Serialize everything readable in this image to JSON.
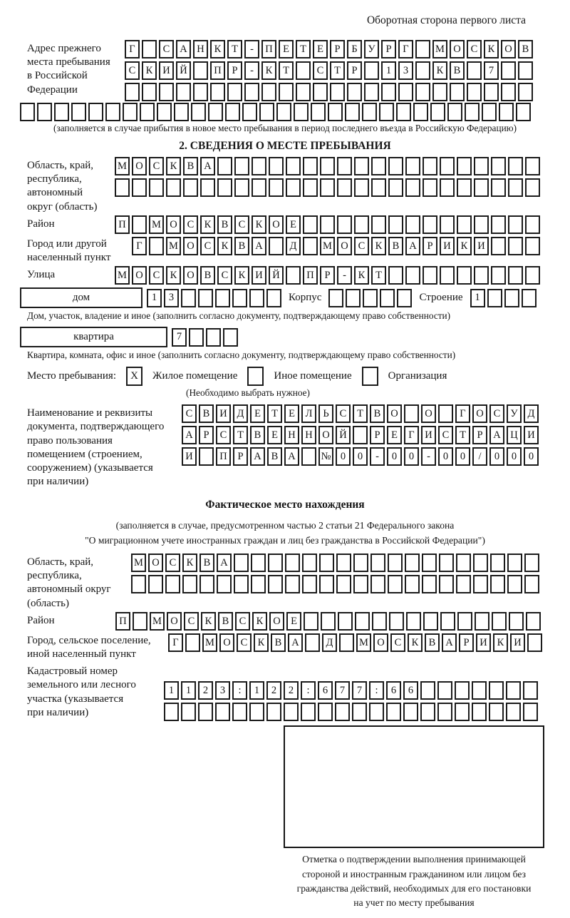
{
  "page_title": "Оборотная сторона первого листа",
  "colors": {
    "ink": "#1b1b1b",
    "background": "#ffffff"
  },
  "prev_address": {
    "label_lines": [
      "Адрес прежнего",
      "места пребывания",
      "в Российской",
      "Федерации"
    ],
    "rows": [
      {
        "chars": "Г САНКТ-ПЕТЕРБУРГ МОСКОВ",
        "len": 24
      },
      {
        "chars": "СКИЙ ПР-КТ СТР 13 КВ 7",
        "len": 24
      },
      {
        "chars": "",
        "len": 24
      }
    ],
    "full_row": {
      "chars": "",
      "len": 30
    },
    "note": "(заполняется в случае прибытия в новое место пребывания в период последнего въезда в Российскую Федерацию)"
  },
  "section2": {
    "title": "2. СВЕДЕНИЯ О МЕСТЕ ПРЕБЫВАНИЯ",
    "region": {
      "label_lines": [
        "Область, край,",
        "республика,",
        "автономный",
        "округ (область)"
      ],
      "rows": [
        {
          "chars": "МОСКВА",
          "len": 25
        },
        {
          "chars": "",
          "len": 25
        }
      ]
    },
    "district": {
      "label": "Район",
      "row": {
        "chars": "П МОСКВСКОЕ",
        "len": 25
      }
    },
    "city": {
      "label_lines": [
        "Город или другой",
        "населенный пункт"
      ],
      "row": {
        "chars": "Г МОСКВА Д МОСКВАРИКИ",
        "len": 24
      }
    },
    "street": {
      "label": "Улица",
      "row": {
        "chars": "МОСКОВСКИЙ ПР-КТ",
        "len": 25
      }
    },
    "house_line": {
      "house_box_label": "дом",
      "house_row": {
        "chars": "13",
        "len": 8
      },
      "korpus_label": "Корпус",
      "korpus_row": {
        "chars": "",
        "len": 5
      },
      "stroenie_label": "Строение",
      "stroenie_row": {
        "chars": "1",
        "len": 4
      }
    },
    "house_note": "Дом, участок, владение и иное (заполнить согласно документу, подтверждающему право собственности)",
    "apartment_line": {
      "box_label": "квартира",
      "row": {
        "chars": "7",
        "len": 4
      }
    },
    "apartment_note": "Квартира, комната, офис и иное (заполнить согласно документу, подтверждающему право собственности)",
    "stay_type": {
      "label": "Место пребывания:",
      "options": [
        {
          "label": "Жилое помещение",
          "mark": "X",
          "checked": true
        },
        {
          "label": "Иное помещение",
          "mark": "",
          "checked": false
        },
        {
          "label": "Организация",
          "mark": "",
          "checked": false
        }
      ],
      "note": "(Необходимо выбрать нужное)"
    },
    "document": {
      "label_lines": [
        "Наименование и реквизиты",
        "документа, подтверждающего",
        "право пользования",
        "помещением (строением,",
        "сооружением) (указывается",
        "при наличии)"
      ],
      "rows": [
        {
          "chars": "СВИДЕТЕЛЬСТВО О ГОСУД",
          "len": 21
        },
        {
          "chars": "АРСТВЕННОЙ РЕГИСТРАЦИ",
          "len": 21
        },
        {
          "chars": "И ПРАВА №00-00-00/000",
          "len": 21
        }
      ]
    }
  },
  "actual_location": {
    "title": "Фактическое место нахождения",
    "note_lines": [
      "(заполняется в случае, предусмотренном частью 2 статьи 21 Федерального закона",
      "\"О миграционном учете иностранных граждан и лиц без гражданства в Российской Федерации\")"
    ],
    "region": {
      "label_lines": [
        "Область, край,",
        "республика,",
        "автономный округ",
        "(область)"
      ],
      "rows": [
        {
          "chars": "МОСКВА",
          "len": 24
        },
        {
          "chars": "",
          "len": 24
        }
      ]
    },
    "district": {
      "label": "Район",
      "row": {
        "chars": "П МОСКВСКОЕ",
        "len": 25
      }
    },
    "city": {
      "label_lines": [
        "Город, сельское поселение,",
        "иной населенный пункт"
      ],
      "row": {
        "chars": "Г МОСКВА Д МОСКВАРИКИ",
        "len": 22
      }
    },
    "cadastral": {
      "label_lines": [
        "Кадастровый номер",
        "земельного или лесного",
        "участка (указывается",
        "при наличии)"
      ],
      "rows": [
        {
          "chars": "1123:122:677:66",
          "len": 22
        },
        {
          "chars": "",
          "len": 22
        }
      ]
    },
    "stamp_note_lines": [
      "Отметка о подтверждении выполнения принимающей",
      "стороной и иностранным гражданином или лицом без",
      "гражданства действий, необходимых для его постановки",
      "на учет по месту пребывания"
    ]
  }
}
